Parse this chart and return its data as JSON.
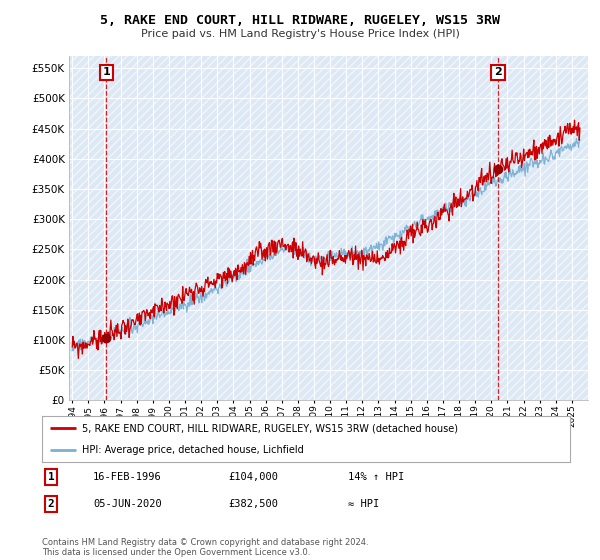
{
  "title": "5, RAKE END COURT, HILL RIDWARE, RUGELEY, WS15 3RW",
  "subtitle": "Price paid vs. HM Land Registry's House Price Index (HPI)",
  "ylim": [
    0,
    570000
  ],
  "yticks": [
    0,
    50000,
    100000,
    150000,
    200000,
    250000,
    300000,
    350000,
    400000,
    450000,
    500000,
    550000
  ],
  "ytick_labels": [
    "£0",
    "£50K",
    "£100K",
    "£150K",
    "£200K",
    "£250K",
    "£300K",
    "£350K",
    "£400K",
    "£450K",
    "£500K",
    "£550K"
  ],
  "x_start_year": 1994,
  "x_end_year": 2025,
  "sale1_date": "16-FEB-1996",
  "sale1_price": 104000,
  "sale1_hpi": "14% ↑ HPI",
  "sale1_label": "1",
  "sale2_date": "05-JUN-2020",
  "sale2_price": 382500,
  "sale2_hpi": "≈ HPI",
  "sale2_label": "2",
  "legend_red": "5, RAKE END COURT, HILL RIDWARE, RUGELEY, WS15 3RW (detached house)",
  "legend_blue": "HPI: Average price, detached house, Lichfield",
  "footnote": "Contains HM Land Registry data © Crown copyright and database right 2024.\nThis data is licensed under the Open Government Licence v3.0.",
  "red_color": "#cc0000",
  "blue_color": "#7ab0d4",
  "sale1_x": 1996.12,
  "sale2_x": 2020.42
}
